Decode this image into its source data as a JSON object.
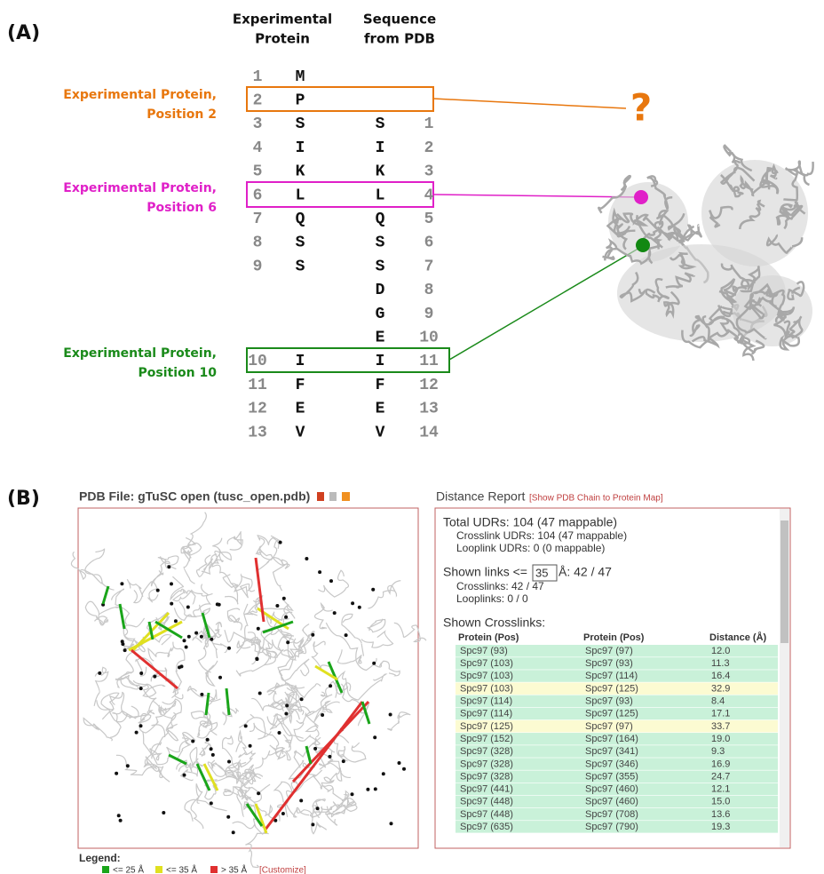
{
  "panel_a": {
    "label": "(A)",
    "headers": {
      "experimental": [
        "Experimental",
        "Protein"
      ],
      "pdb": [
        "Sequence",
        "from PDB"
      ]
    },
    "rows": [
      {
        "exp_number": 1,
        "exp_residue": "M"
      },
      {
        "exp_number": 2,
        "exp_residue": "P"
      },
      {
        "exp_number": 3,
        "exp_residue": "S",
        "pdb_residue": "S",
        "pdb_number": 1
      },
      {
        "exp_number": 4,
        "exp_residue": "I",
        "pdb_residue": "I",
        "pdb_number": 2
      },
      {
        "exp_number": 5,
        "exp_residue": "K",
        "pdb_residue": "K",
        "pdb_number": 3
      },
      {
        "exp_number": 6,
        "exp_residue": "L",
        "pdb_residue": "L",
        "pdb_number": 4
      },
      {
        "exp_number": 7,
        "exp_residue": "Q",
        "pdb_residue": "Q",
        "pdb_number": 5
      },
      {
        "exp_number": 8,
        "exp_residue": "S",
        "pdb_residue": "S",
        "pdb_number": 6
      },
      {
        "exp_number": 9,
        "exp_residue": "S",
        "pdb_residue": "S",
        "pdb_number": 7
      },
      {
        "pdb_residue": "D",
        "pdb_number": 8
      },
      {
        "pdb_residue": "G",
        "pdb_number": 9
      },
      {
        "pdb_residue": "E",
        "pdb_number": 10
      },
      {
        "exp_number": 10,
        "exp_residue": "I",
        "pdb_residue": "I",
        "pdb_number": 11
      },
      {
        "exp_number": 11,
        "exp_residue": "F",
        "pdb_residue": "F",
        "pdb_number": 12
      },
      {
        "exp_number": 12,
        "exp_residue": "E",
        "pdb_residue": "E",
        "pdb_number": 13
      },
      {
        "exp_number": 13,
        "exp_residue": "V",
        "pdb_residue": "V",
        "pdb_number": 14
      }
    ],
    "callouts": [
      [
        "Experimental Protein,",
        "Position 2"
      ],
      [
        "Experimental Protein,",
        "Position 6"
      ],
      [
        "Experimental Protein,",
        "Position 10"
      ]
    ],
    "unknown_mark": "?"
  },
  "panel_b": {
    "label": "(B)",
    "pdb_title": "PDB File: gTuSC open (tusc_open.pdb)",
    "report_title": "Distance Report",
    "report_link": "[Show PDB Chain to Protein Map]",
    "total": "Total UDRs: 104 (47 mappable)",
    "crosslink_udrs": "Crosslink UDRs: 104 (47 mappable)",
    "looplink_udrs": "Looplink UDRs: 0 (0 mappable)",
    "shown_links_prefix": "Shown links <=",
    "shown_links_input": "35",
    "shown_links_suffix": "Å: 42 / 47",
    "crosslinks": "Crosslinks: 42 / 47",
    "looplinks": "Looplinks: 0 / 0",
    "shown_crosslinks": "Shown Crosslinks:",
    "table_headers": [
      "Protein (Pos)",
      "Protein (Pos)",
      "Distance (Å)"
    ],
    "table_rows": [
      {
        "cells": [
          "Spc97 (93)",
          "Spc97 (97)",
          "12.0"
        ],
        "color": "#c9f1d9"
      },
      {
        "cells": [
          "Spc97 (103)",
          "Spc97 (93)",
          "11.3"
        ],
        "color": "#c9f1d9"
      },
      {
        "cells": [
          "Spc97 (103)",
          "Spc97 (114)",
          "16.4"
        ],
        "color": "#c9f1d9"
      },
      {
        "cells": [
          "Spc97 (103)",
          "Spc97 (125)",
          "32.9"
        ],
        "color": "#fcfbd2"
      },
      {
        "cells": [
          "Spc97 (114)",
          "Spc97 (93)",
          "8.4"
        ],
        "color": "#c9f1d9"
      },
      {
        "cells": [
          "Spc97 (114)",
          "Spc97 (125)",
          "17.1"
        ],
        "color": "#c9f1d9"
      },
      {
        "cells": [
          "Spc97 (125)",
          "Spc97 (97)",
          "33.7"
        ],
        "color": "#fcfbd2"
      },
      {
        "cells": [
          "Spc97 (152)",
          "Spc97 (164)",
          "19.0"
        ],
        "color": "#c9f1d9"
      },
      {
        "cells": [
          "Spc97 (328)",
          "Spc97 (341)",
          "9.3"
        ],
        "color": "#c9f1d9"
      },
      {
        "cells": [
          "Spc97 (328)",
          "Spc97 (346)",
          "16.9"
        ],
        "color": "#c9f1d9"
      },
      {
        "cells": [
          "Spc97 (328)",
          "Spc97 (355)",
          "24.7"
        ],
        "color": "#c9f1d9"
      },
      {
        "cells": [
          "Spc97 (441)",
          "Spc97 (460)",
          "12.1"
        ],
        "color": "#c9f1d9"
      },
      {
        "cells": [
          "Spc97 (448)",
          "Spc97 (460)",
          "15.0"
        ],
        "color": "#c9f1d9"
      },
      {
        "cells": [
          "Spc97 (448)",
          "Spc97 (708)",
          "13.6"
        ],
        "color": "#c9f1d9"
      },
      {
        "cells": [
          "Spc97 (635)",
          "Spc97 (790)",
          "19.3"
        ],
        "color": "#c9f1d9"
      }
    ],
    "legend_title": "Legend:",
    "legend": [
      {
        "label": "<= 25 Å",
        "color": "#1aa51a"
      },
      {
        "label": "<= 35 Å",
        "color": "#e0e020"
      },
      {
        "label": "> 35 Å",
        "color": "#e03030"
      }
    ],
    "customize": "[Customize]"
  }
}
